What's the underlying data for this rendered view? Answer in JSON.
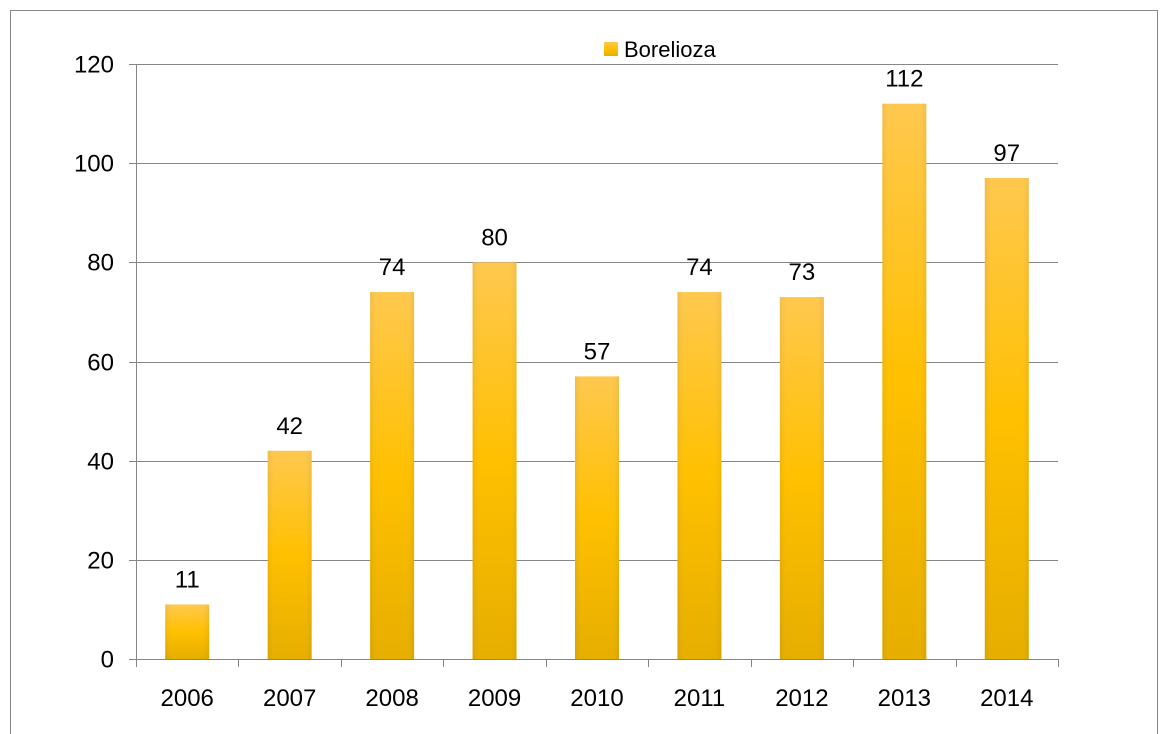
{
  "chart_data": {
    "type": "bar",
    "categories": [
      "2006",
      "2007",
      "2008",
      "2009",
      "2010",
      "2011",
      "2012",
      "2013",
      "2014"
    ],
    "series": [
      {
        "name": "Borelioza",
        "values": [
          11,
          42,
          74,
          80,
          57,
          74,
          73,
          112,
          97
        ]
      }
    ],
    "data_labels": [
      "11",
      "42",
      "74",
      "80",
      "57",
      "74",
      "73",
      "112",
      "97"
    ],
    "title": "",
    "xlabel": "",
    "ylabel": "",
    "ylim": [
      0,
      120
    ],
    "yticks": [
      0,
      20,
      40,
      60,
      80,
      100,
      120
    ],
    "ytick_labels": [
      "0",
      "20",
      "40",
      "60",
      "80",
      "100",
      "120"
    ],
    "grid": true,
    "legend_position": "top-center",
    "colors": {
      "bar_top": "#FFC84E",
      "bar_mid": "#FFC000",
      "bar_bottom": "#E6AE00",
      "grid": "#868686",
      "axis": "#868686",
      "border": "#868686"
    }
  }
}
